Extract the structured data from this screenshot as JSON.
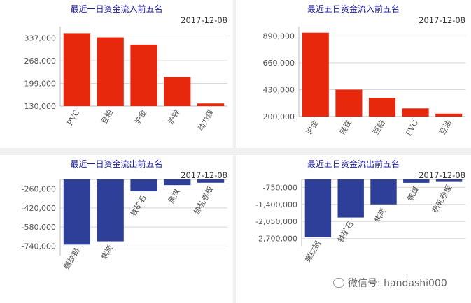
{
  "chart_data": [
    {
      "type": "bar",
      "title": "最近一日资金流入前五名",
      "date": "2017-12-08",
      "categories": [
        "PVC",
        "豆粕",
        "沪金",
        "沪锌",
        "动力煤"
      ],
      "values": [
        352000,
        339000,
        317000,
        218000,
        138000
      ],
      "baseline": 130000,
      "yticks": [
        130000,
        199000,
        268000,
        337000
      ],
      "ytick_labels": [
        "130,000",
        "199,000",
        "268,000",
        "337,000"
      ],
      "ylim": [
        130000,
        372000
      ],
      "color": "#e8280c",
      "grid": true
    },
    {
      "type": "bar",
      "title": "最近五日资金流入前五名",
      "date": "2017-12-08",
      "categories": [
        "沪金",
        "硅铁",
        "豆粕",
        "PVC",
        "豆油"
      ],
      "values": [
        918000,
        430000,
        360000,
        270000,
        225000
      ],
      "baseline": 200000,
      "yticks": [
        200000,
        430000,
        660000,
        890000
      ],
      "ytick_labels": [
        "200,000",
        "430,000",
        "660,000",
        "890,000"
      ],
      "ylim": [
        200000,
        970000
      ],
      "color": "#e8280c",
      "grid": true
    },
    {
      "type": "bar",
      "title": "最近一日资金流出前五名",
      "date": "2017-12-08",
      "categories": [
        "螺纹钢",
        "焦炭",
        "铁矿石",
        "焦煤",
        "热轧卷板"
      ],
      "values": [
        -728000,
        -700000,
        -280000,
        -228000,
        -208000
      ],
      "baseline": -180000,
      "yticks": [
        -260000,
        -420000,
        -580000,
        -740000
      ],
      "ytick_labels": [
        "-260,000",
        "-420,000",
        "-580,000",
        "-740,000"
      ],
      "ylim": [
        -820000,
        -180000
      ],
      "color": "#2e3f99",
      "grid": true
    },
    {
      "type": "bar",
      "title": "最近五日资金流出前五名",
      "date": "2017-12-08",
      "categories": [
        "螺纹钢",
        "铁矿石",
        "焦炭",
        "焦煤",
        "热轧卷板"
      ],
      "values": [
        -2650000,
        -1900000,
        -1400000,
        -580000,
        -520000
      ],
      "baseline": -450000,
      "yticks": [
        -750000,
        -1400000,
        -2050000,
        -2700000
      ],
      "ytick_labels": [
        "-750,000",
        "-1,400,000",
        "-2,050,000",
        "-2,700,000"
      ],
      "ylim": [
        -3000000,
        -450000
      ],
      "color": "#2e3f99",
      "grid": true
    }
  ],
  "watermark": "微信号: handashi000"
}
